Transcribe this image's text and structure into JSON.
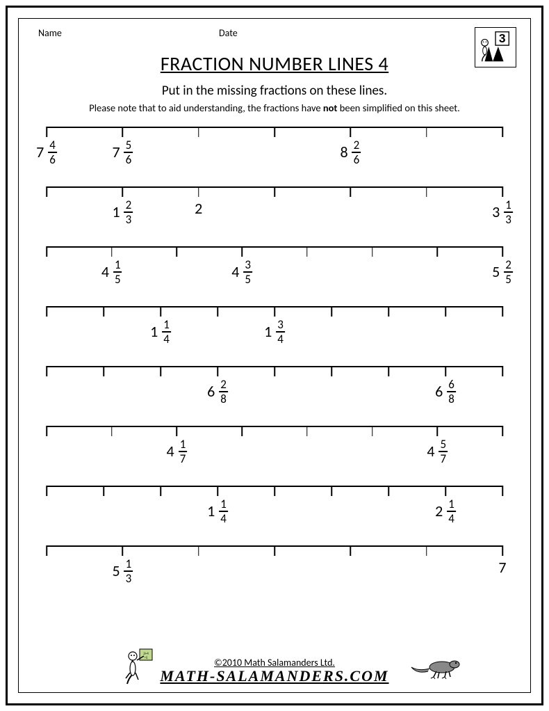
{
  "header": {
    "name_label": "Name",
    "date_label": "Date"
  },
  "title": "FRACTION NUMBER LINES 4",
  "subtitle": "Put in the missing fractions on these lines.",
  "note_pre": "Please note that to aid understanding, the fractions have ",
  "note_bold": "not",
  "note_post": " been simplified on this sheet.",
  "axis_width": 660,
  "lines": [
    {
      "ticks": 7,
      "labels": [
        {
          "pos": 0,
          "whole": "7",
          "num": "4",
          "den": "6"
        },
        {
          "pos": 1,
          "whole": "7",
          "num": "5",
          "den": "6"
        },
        {
          "pos": 4,
          "whole": "8",
          "num": "2",
          "den": "6"
        }
      ]
    },
    {
      "ticks": 7,
      "labels": [
        {
          "pos": 1,
          "whole": "1",
          "num": "2",
          "den": "3"
        },
        {
          "pos": 2,
          "whole": "2"
        },
        {
          "pos": 6,
          "whole": "3",
          "num": "1",
          "den": "3"
        }
      ]
    },
    {
      "ticks": 8,
      "labels": [
        {
          "pos": 1,
          "whole": "4",
          "num": "1",
          "den": "5"
        },
        {
          "pos": 3,
          "whole": "4",
          "num": "3",
          "den": "5"
        },
        {
          "pos": 7,
          "whole": "5",
          "num": "2",
          "den": "5"
        }
      ]
    },
    {
      "ticks": 9,
      "labels": [
        {
          "pos": 2,
          "whole": "1",
          "num": "1",
          "den": "4"
        },
        {
          "pos": 4,
          "whole": "1",
          "num": "3",
          "den": "4"
        }
      ]
    },
    {
      "ticks": 9,
      "labels": [
        {
          "pos": 3,
          "whole": "6",
          "num": "2",
          "den": "8"
        },
        {
          "pos": 7,
          "whole": "6",
          "num": "6",
          "den": "8"
        }
      ]
    },
    {
      "ticks": 8,
      "labels": [
        {
          "pos": 2,
          "whole": "4",
          "num": "1",
          "den": "7"
        },
        {
          "pos": 6,
          "whole": "4",
          "num": "5",
          "den": "7"
        }
      ]
    },
    {
      "ticks": 9,
      "labels": [
        {
          "pos": 3,
          "whole": "1",
          "num": "1",
          "den": "4"
        },
        {
          "pos": 7,
          "whole": "2",
          "num": "1",
          "den": "4"
        }
      ]
    },
    {
      "ticks": 7,
      "labels": [
        {
          "pos": 1,
          "whole": "5",
          "num": "1",
          "den": "3"
        },
        {
          "pos": 6,
          "whole": "7"
        }
      ]
    }
  ],
  "footer": {
    "copyright": "©2010 Math Salamanders Ltd.",
    "site": "MATH-SALAMANDERS.COM"
  },
  "colors": {
    "ink": "#000000",
    "paper": "#ffffff"
  }
}
